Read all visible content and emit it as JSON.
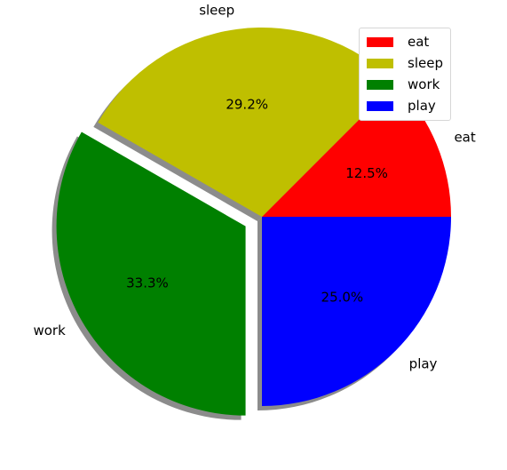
{
  "chart_data": {
    "type": "pie",
    "categories": [
      "eat",
      "sleep",
      "work",
      "play"
    ],
    "values": [
      12.5,
      29.2,
      33.3,
      25.0
    ],
    "percent_labels": [
      "12.5%",
      "29.2%",
      "33.3%",
      "25.0%"
    ],
    "colors": [
      "#ff0000",
      "#bfbf00",
      "#008000",
      "#0000ff"
    ],
    "explode": [
      0,
      0,
      0.1,
      0
    ],
    "start_angle_deg": 0,
    "shadow": true,
    "title": "",
    "legend": {
      "placement": "top-right",
      "entries": [
        "eat",
        "sleep",
        "work",
        "play"
      ]
    }
  }
}
